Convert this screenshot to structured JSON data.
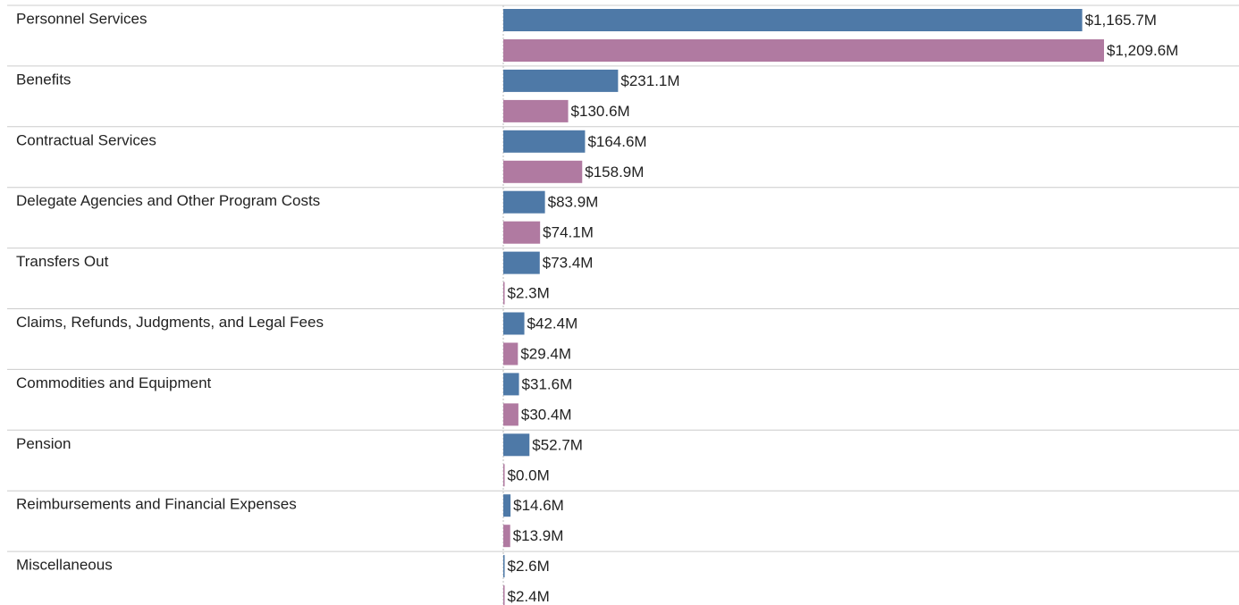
{
  "chart_data": {
    "type": "bar",
    "categories": [
      "Personnel Services",
      "Benefits",
      "Contractual Services",
      "Delegate Agencies and Other Program Costs",
      "Transfers Out",
      "Claims, Refunds, Judgments, and Legal Fees",
      "Commodities and Equipment",
      "Pension",
      "Reimbursements and Financial Expenses",
      "Miscellaneous"
    ],
    "series": [
      {
        "color": "#4e79a7",
        "values": [
          1165.7,
          231.1,
          164.6,
          83.9,
          73.4,
          42.4,
          31.6,
          52.7,
          14.6,
          2.6
        ],
        "value_labels": [
          "$1,165.7M",
          "$231.1M",
          "$164.6M",
          "$83.9M",
          "$73.4M",
          "$42.4M",
          "$31.6M",
          "$52.7M",
          "$14.6M",
          "$2.6M"
        ]
      },
      {
        "color": "#b07aa1",
        "values": [
          1209.6,
          130.6,
          158.9,
          74.1,
          2.3,
          29.4,
          30.4,
          0.0,
          13.9,
          2.4
        ],
        "value_labels": [
          "$1,209.6M",
          "$130.6M",
          "$158.9M",
          "$74.1M",
          "$2.3M",
          "$29.4M",
          "$30.4M",
          "$0.0M",
          "$13.9M",
          "$2.4M"
        ]
      }
    ]
  }
}
